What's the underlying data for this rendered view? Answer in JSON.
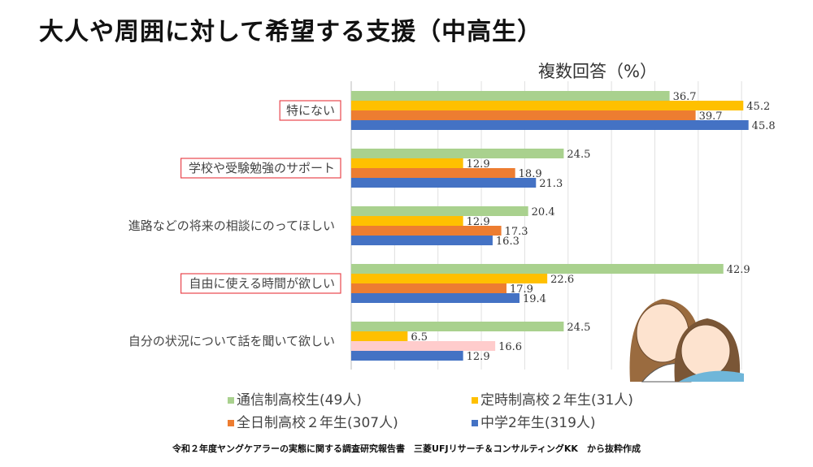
{
  "title": "大人や周囲に対して希望する支援（中高生）",
  "subtitle": "複数回答（%）",
  "source": "令和２年度ヤングケアラーの実態に関する調査研究報告書　三菱UFJリサーチ＆コンサルティングKK　から抜粋作成",
  "chart_data": {
    "type": "bar",
    "orientation": "horizontal",
    "categories": [
      "特にない",
      "学校や受験勉強のサポート",
      "進路などの将来の相談にのってほしい",
      "自由に使える時間が欲しい",
      "自分の状況について話を聞いて欲しい"
    ],
    "highlighted_categories": [
      "特にない",
      "学校や受験勉強のサポート",
      "自由に使える時間が欲しい"
    ],
    "highlight_color": "#e8464e",
    "series": [
      {
        "name": "通信制高校生(49人)",
        "color": "#a9d18e",
        "values": [
          36.7,
          24.5,
          20.4,
          42.9,
          24.5
        ]
      },
      {
        "name": "定時制高校２年生(31人)",
        "color": "#ffc000",
        "values": [
          45.2,
          12.9,
          12.9,
          22.6,
          6.5
        ]
      },
      {
        "name": "全日制高校２年生(307人)",
        "color": "#ed7d31",
        "point_colors": [
          null,
          null,
          null,
          null,
          "#ffcccc"
        ],
        "values": [
          39.7,
          18.9,
          17.3,
          17.9,
          16.6
        ]
      },
      {
        "name": "中学2年生(319人)",
        "color": "#4472c4",
        "values": [
          45.8,
          21.3,
          16.3,
          19.4,
          12.9
        ]
      }
    ],
    "xlim": [
      0,
      45
    ],
    "grid": true,
    "grid_step": 5,
    "legend_placement": "bottom"
  }
}
